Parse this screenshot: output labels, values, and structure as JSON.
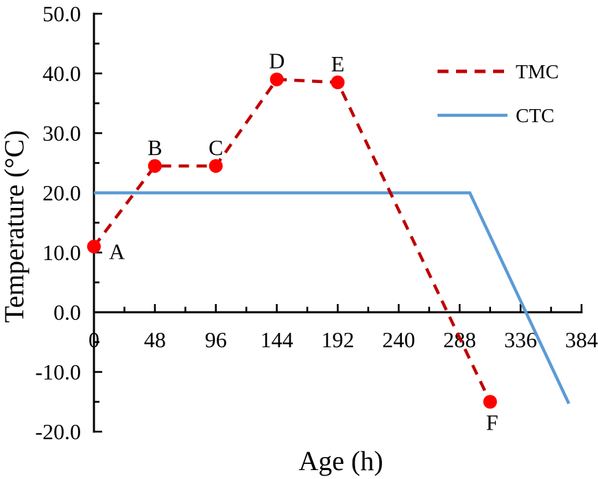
{
  "chart_data": {
    "type": "line",
    "title": "",
    "xlabel": "Age (h)",
    "ylabel": "Temperature (°C)",
    "xlim": [
      0,
      384
    ],
    "ylim": [
      -20,
      50
    ],
    "grid": false,
    "x_ticks": [
      0,
      48,
      96,
      144,
      192,
      240,
      288,
      336,
      384
    ],
    "x_tick_labels": [
      "0",
      "48",
      "96",
      "144",
      "192",
      "240",
      "288",
      "336",
      "384"
    ],
    "x_minor_ticks": [
      24,
      72,
      120,
      168,
      216,
      264,
      312,
      360
    ],
    "y_ticks": [
      -20,
      -10,
      0,
      10,
      20,
      30,
      40,
      50
    ],
    "y_tick_labels": [
      "-20.0",
      "-10.0",
      "0.0",
      "10.0",
      "20.0",
      "30.0",
      "40.0",
      "50.0"
    ],
    "y_minor_ticks": [
      -15,
      -5,
      5,
      15,
      25,
      35,
      45
    ],
    "legend": {
      "position": "upper-right",
      "entries": [
        "TMC",
        "CTC"
      ]
    },
    "series": [
      {
        "name": "TMC",
        "type": "line",
        "line_style": "dashed",
        "line_color": "#C00000",
        "marker": "circle",
        "marker_color": "#FF0000",
        "points": [
          {
            "x": 0,
            "y": 11,
            "label": "A",
            "label_pos": "right"
          },
          {
            "x": 48,
            "y": 24.5,
            "label": "B",
            "label_pos": "above"
          },
          {
            "x": 96,
            "y": 24.5,
            "label": "C",
            "label_pos": "above"
          },
          {
            "x": 144,
            "y": 39,
            "label": "D",
            "label_pos": "above"
          },
          {
            "x": 192,
            "y": 38.5,
            "label": "E",
            "label_pos": "above"
          },
          {
            "x": 312,
            "y": -15,
            "label": "F",
            "label_pos": "below"
          }
        ]
      },
      {
        "name": "CTC",
        "type": "line",
        "line_style": "solid",
        "line_color": "#5B9BD5",
        "marker": "none",
        "points": [
          {
            "x": 0,
            "y": 20
          },
          {
            "x": 296,
            "y": 20
          },
          {
            "x": 374,
            "y": -15.3
          }
        ]
      }
    ]
  },
  "colors": {
    "axis": "#000000",
    "background": "#FFFFFF",
    "tmc_line": "#C00000",
    "tmc_marker": "#FF0000",
    "ctc_line": "#5B9BD5"
  }
}
